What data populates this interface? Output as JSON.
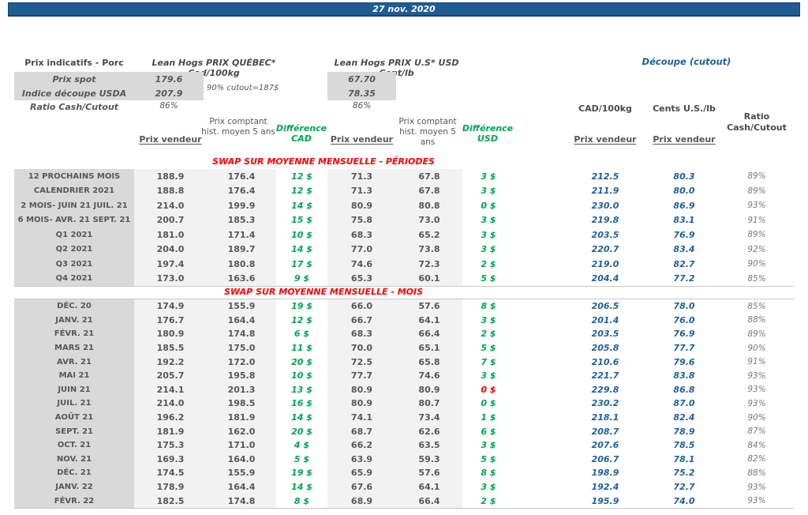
{
  "title_bar": {
    "date": "27 nov. 2020"
  },
  "colors": {
    "banner_blue": "#1F5C96",
    "cutout_blue": "#1E5F9E",
    "difference_green": "#00A651",
    "alert_red": "#FF0000",
    "label_shade": "#D9D9D9",
    "value_shade": "#F2F2F2"
  },
  "indicative": {
    "title": "Prix indicatifs - Porc",
    "quebec_title": "Lean Hogs PRIX QUÉBEC* Cad/100kg",
    "us_title": "Lean Hogs PRIX U.S* USD Cent/lb",
    "cutout_title": "Découpe (cutout)",
    "spot_label": "Prix spot",
    "spot_cad": "179.6",
    "spot_usd": "67.70",
    "cutout_index_label": "Indice découpe USDA",
    "cutout_index_cad": "207.9",
    "cutout_index_usd": "78.35",
    "cutout_note": "90% cutout=187$",
    "ratio_label": "Ratio Cash/Cutout",
    "ratio_cad": "86%",
    "ratio_usd": "86%"
  },
  "table": {
    "col_headers": {
      "prix_vendeur_cad": "Prix vendeur",
      "prix_comptant_cad": "Prix comptant hist. moyen 5 ans",
      "difference_cad": "Différence CAD",
      "prix_vendeur_usd": "Prix vendeur",
      "prix_comptant_usd": "Prix comptant hist. moyen 5 ans",
      "difference_usd": "Différence USD",
      "cutout_cad_unit": "CAD/100kg",
      "cutout_usd_unit": "Cents U.S./lb",
      "cutout_prix_vendeur_cad": "Prix vendeur",
      "cutout_prix_vendeur_usd": "Prix vendeur",
      "ratio_line1": "Ratio",
      "ratio_line2": "Cash/Cutout"
    },
    "sections": [
      {
        "title": "SWAP SUR MOYENNE MENSUELLE - PÉRIODES",
        "rows": [
          {
            "label": "12 PROCHAINS MOIS",
            "pv_cad": "188.9",
            "pc_cad": "176.4",
            "diff_cad": "12 $",
            "pv_usd": "71.3",
            "pc_usd": "67.8",
            "diff_usd": "3 $",
            "cut_cad": "212.5",
            "cut_usd": "80.3",
            "ratio": "89%"
          },
          {
            "label": "CALENDRIER 2021",
            "pv_cad": "188.8",
            "pc_cad": "176.4",
            "diff_cad": "12 $",
            "pv_usd": "71.3",
            "pc_usd": "67.8",
            "diff_usd": "3 $",
            "cut_cad": "211.9",
            "cut_usd": "80.0",
            "ratio": "89%"
          },
          {
            "label": "2 MOIS- JUIN 21 JUIL. 21",
            "pv_cad": "214.0",
            "pc_cad": "199.9",
            "diff_cad": "14 $",
            "pv_usd": "80.9",
            "pc_usd": "80.8",
            "diff_usd": "0 $",
            "cut_cad": "230.0",
            "cut_usd": "86.9",
            "ratio": "93%"
          },
          {
            "label": "6 MOIS- AVR. 21 SEPT. 21",
            "pv_cad": "200.7",
            "pc_cad": "185.3",
            "diff_cad": "15 $",
            "pv_usd": "75.8",
            "pc_usd": "73.0",
            "diff_usd": "3 $",
            "cut_cad": "219.8",
            "cut_usd": "83.1",
            "ratio": "91%"
          },
          {
            "label": "Q1 2021",
            "pv_cad": "181.0",
            "pc_cad": "171.4",
            "diff_cad": "10 $",
            "pv_usd": "68.3",
            "pc_usd": "65.2",
            "diff_usd": "3 $",
            "cut_cad": "203.5",
            "cut_usd": "76.9",
            "ratio": "89%"
          },
          {
            "label": "Q2 2021",
            "pv_cad": "204.0",
            "pc_cad": "189.7",
            "diff_cad": "14 $",
            "pv_usd": "77.0",
            "pc_usd": "73.8",
            "diff_usd": "3 $",
            "cut_cad": "220.7",
            "cut_usd": "83.4",
            "ratio": "92%"
          },
          {
            "label": "Q3 2021",
            "pv_cad": "197.4",
            "pc_cad": "180.8",
            "diff_cad": "17 $",
            "pv_usd": "74.6",
            "pc_usd": "72.3",
            "diff_usd": "2 $",
            "cut_cad": "219.0",
            "cut_usd": "82.7",
            "ratio": "90%"
          },
          {
            "label": "Q4 2021",
            "pv_cad": "173.0",
            "pc_cad": "163.6",
            "diff_cad": "9 $",
            "pv_usd": "65.3",
            "pc_usd": "60.1",
            "diff_usd": "5 $",
            "cut_cad": "204.4",
            "cut_usd": "77.2",
            "ratio": "85%"
          }
        ]
      },
      {
        "title": "SWAP SUR MOYENNE MENSUELLE - MOIS",
        "rows": [
          {
            "label": "DÉC. 20",
            "pv_cad": "174.9",
            "pc_cad": "155.9",
            "diff_cad": "19 $",
            "pv_usd": "66.0",
            "pc_usd": "57.6",
            "diff_usd": "8 $",
            "cut_cad": "206.5",
            "cut_usd": "78.0",
            "ratio": "85%"
          },
          {
            "label": "JANV. 21",
            "pv_cad": "176.7",
            "pc_cad": "164.4",
            "diff_cad": "12 $",
            "pv_usd": "66.7",
            "pc_usd": "64.1",
            "diff_usd": "3 $",
            "cut_cad": "201.4",
            "cut_usd": "76.0",
            "ratio": "88%"
          },
          {
            "label": "FÉVR. 21",
            "pv_cad": "180.9",
            "pc_cad": "174.8",
            "diff_cad": "6 $",
            "pv_usd": "68.3",
            "pc_usd": "66.4",
            "diff_usd": "2 $",
            "cut_cad": "203.5",
            "cut_usd": "76.9",
            "ratio": "89%"
          },
          {
            "label": "MARS 21",
            "pv_cad": "185.5",
            "pc_cad": "175.0",
            "diff_cad": "11 $",
            "pv_usd": "70.0",
            "pc_usd": "65.1",
            "diff_usd": "5 $",
            "cut_cad": "205.8",
            "cut_usd": "77.7",
            "ratio": "90%"
          },
          {
            "label": "AVR. 21",
            "pv_cad": "192.2",
            "pc_cad": "172.0",
            "diff_cad": "20 $",
            "pv_usd": "72.5",
            "pc_usd": "65.8",
            "diff_usd": "7 $",
            "cut_cad": "210.6",
            "cut_usd": "79.6",
            "ratio": "91%"
          },
          {
            "label": "MAI 21",
            "pv_cad": "205.7",
            "pc_cad": "195.8",
            "diff_cad": "10 $",
            "pv_usd": "77.7",
            "pc_usd": "74.6",
            "diff_usd": "3 $",
            "cut_cad": "221.7",
            "cut_usd": "83.8",
            "ratio": "93%"
          },
          {
            "label": "JUIN 21",
            "pv_cad": "214.1",
            "pc_cad": "201.3",
            "diff_cad": "13 $",
            "pv_usd": "80.9",
            "pc_usd": "80.9",
            "diff_usd": "0 $",
            "diff_usd_red": true,
            "cut_cad": "229.8",
            "cut_usd": "86.8",
            "ratio": "93%"
          },
          {
            "label": "JUIL. 21",
            "pv_cad": "214.0",
            "pc_cad": "198.5",
            "diff_cad": "16 $",
            "pv_usd": "80.9",
            "pc_usd": "80.7",
            "diff_usd": "0 $",
            "cut_cad": "230.2",
            "cut_usd": "87.0",
            "ratio": "93%"
          },
          {
            "label": "AOÛT 21",
            "pv_cad": "196.2",
            "pc_cad": "181.9",
            "diff_cad": "14 $",
            "pv_usd": "74.1",
            "pc_usd": "73.4",
            "diff_usd": "1 $",
            "cut_cad": "218.1",
            "cut_usd": "82.4",
            "ratio": "90%"
          },
          {
            "label": "SEPT. 21",
            "pv_cad": "181.9",
            "pc_cad": "162.0",
            "diff_cad": "20 $",
            "pv_usd": "68.7",
            "pc_usd": "62.6",
            "diff_usd": "6 $",
            "cut_cad": "208.7",
            "cut_usd": "78.9",
            "ratio": "87%"
          },
          {
            "label": "OCT. 21",
            "pv_cad": "175.3",
            "pc_cad": "171.0",
            "diff_cad": "4 $",
            "pv_usd": "66.2",
            "pc_usd": "63.5",
            "diff_usd": "3 $",
            "cut_cad": "207.6",
            "cut_usd": "78.5",
            "ratio": "84%"
          },
          {
            "label": "NOV. 21",
            "pv_cad": "169.3",
            "pc_cad": "164.0",
            "diff_cad": "5 $",
            "pv_usd": "63.9",
            "pc_usd": "59.3",
            "diff_usd": "5 $",
            "cut_cad": "206.7",
            "cut_usd": "78.1",
            "ratio": "82%"
          },
          {
            "label": "DÉC. 21",
            "pv_cad": "174.5",
            "pc_cad": "155.9",
            "diff_cad": "19 $",
            "pv_usd": "65.9",
            "pc_usd": "57.6",
            "diff_usd": "8 $",
            "cut_cad": "198.9",
            "cut_usd": "75.2",
            "ratio": "88%"
          },
          {
            "label": "JANV. 22",
            "pv_cad": "178.9",
            "pc_cad": "164.4",
            "diff_cad": "14 $",
            "pv_usd": "67.6",
            "pc_usd": "64.1",
            "diff_usd": "3 $",
            "cut_cad": "192.4",
            "cut_usd": "72.7",
            "ratio": "93%"
          },
          {
            "label": "FÉVR. 22",
            "pv_cad": "182.5",
            "pc_cad": "174.8",
            "diff_cad": "8 $",
            "pv_usd": "68.9",
            "pc_usd": "66.4",
            "diff_usd": "2 $",
            "cut_cad": "195.9",
            "cut_usd": "74.0",
            "ratio": "93%"
          }
        ]
      }
    ]
  }
}
